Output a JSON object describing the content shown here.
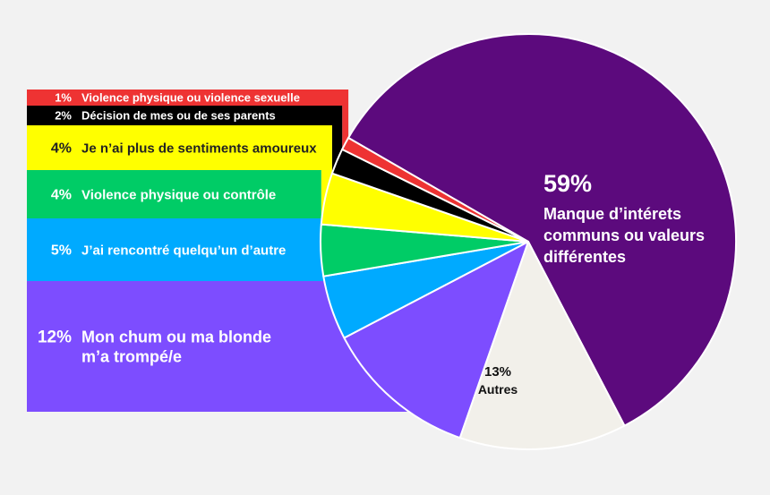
{
  "chart_data": {
    "type": "pie",
    "title": "",
    "slices": [
      {
        "pct_label": "59%",
        "label_lines": [
          "Manque d’intérets",
          "communs ou valeurs",
          "différentes"
        ],
        "value": 59,
        "color": "#5c0a7d"
      },
      {
        "pct_label": "13%",
        "label_lines": [
          "Autres"
        ],
        "value": 13,
        "color": "#f2f0ea"
      },
      {
        "pct_label": "12%",
        "label_lines": [
          "Mon chum ou ma blonde",
          "m’a trompé/e"
        ],
        "value": 12,
        "color": "#7d4dff"
      },
      {
        "pct_label": "5%",
        "label_lines": [
          "J’ai rencontré quelqu’un d’autre"
        ],
        "value": 5,
        "color": "#00aaff"
      },
      {
        "pct_label": "4%",
        "label_lines": [
          "Violence physique ou contrôle"
        ],
        "value": 4,
        "color": "#00cc66"
      },
      {
        "pct_label": "4%",
        "label_lines": [
          "Je n’ai plus de sentiments amoureux"
        ],
        "value": 4,
        "color": "#ffff00"
      },
      {
        "pct_label": "2%",
        "label_lines": [
          "Décision de mes ou de ses parents"
        ],
        "value": 2,
        "color": "#000000"
      },
      {
        "pct_label": "1%",
        "label_lines": [
          "Violence physique ou violence sexuelle"
        ],
        "value": 1,
        "color": "#ee3333"
      }
    ]
  }
}
